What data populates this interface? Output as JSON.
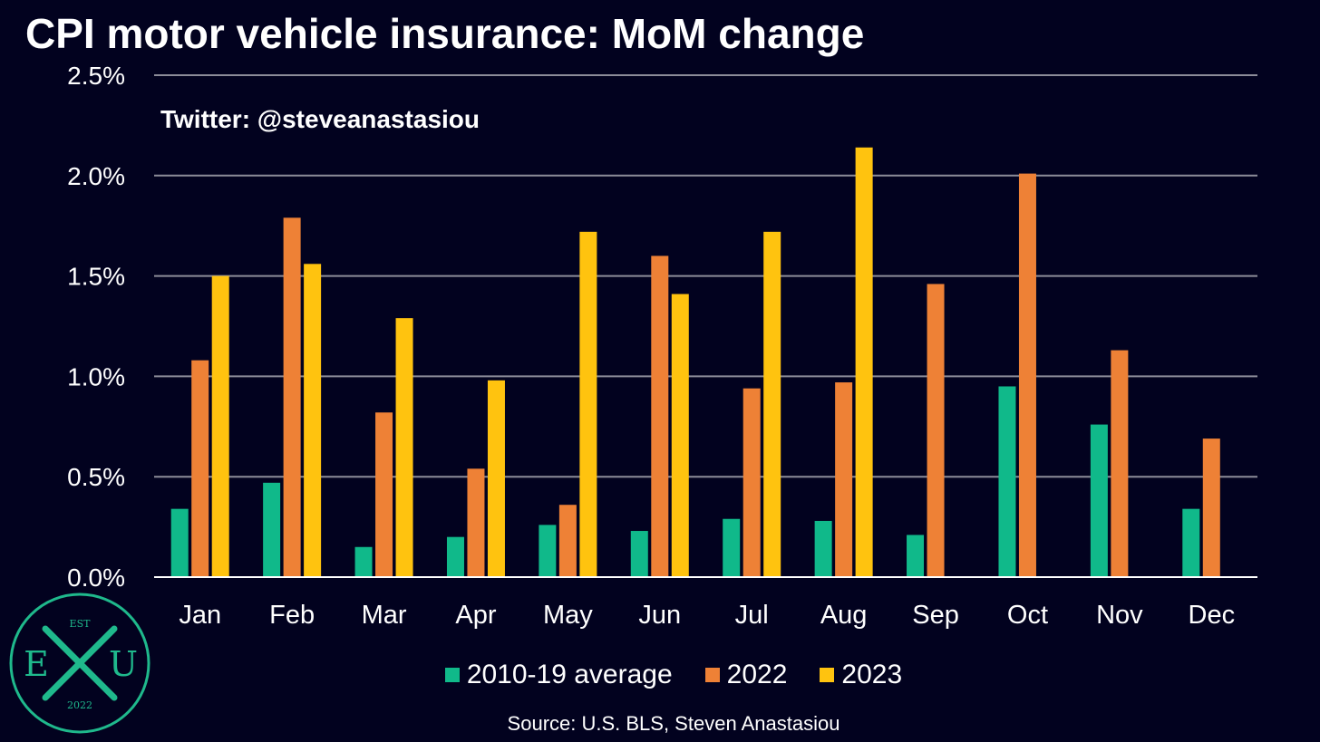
{
  "title": "CPI motor vehicle insurance: MoM change",
  "watermark": "Twitter: @steveanastasiou",
  "source": "Source: U.S. BLS, Steven Anastasiou",
  "logo": {
    "top": "EST",
    "left": "E",
    "right": "U",
    "bottom": "2022"
  },
  "colors": {
    "background": "#02021f",
    "gridline": "#8c8c99",
    "axis": "#ffffff",
    "logo": "#1fb98c"
  },
  "chart_data": {
    "type": "bar",
    "title": "CPI motor vehicle insurance: MoM change",
    "categories": [
      "Jan",
      "Feb",
      "Mar",
      "Apr",
      "May",
      "Jun",
      "Jul",
      "Aug",
      "Sep",
      "Oct",
      "Nov",
      "Dec"
    ],
    "series": [
      {
        "name": "2010-19 average",
        "color": "#10b98a",
        "values": [
          0.34,
          0.47,
          0.15,
          0.2,
          0.26,
          0.23,
          0.29,
          0.28,
          0.21,
          0.95,
          0.76,
          0.34
        ]
      },
      {
        "name": "2022",
        "color": "#ee8136",
        "values": [
          1.08,
          1.79,
          0.82,
          0.54,
          0.36,
          1.6,
          0.94,
          0.97,
          1.46,
          2.01,
          1.13,
          0.69
        ]
      },
      {
        "name": "2023",
        "color": "#ffc30f",
        "values": [
          1.5,
          1.56,
          1.29,
          0.98,
          1.72,
          1.41,
          1.72,
          2.14,
          null,
          null,
          null,
          null
        ]
      }
    ],
    "yticks": [
      "0.0%",
      "0.5%",
      "1.0%",
      "1.5%",
      "2.0%",
      "2.5%"
    ],
    "ylim": [
      0,
      2.5
    ],
    "grid": true,
    "legend_position": "bottom"
  }
}
